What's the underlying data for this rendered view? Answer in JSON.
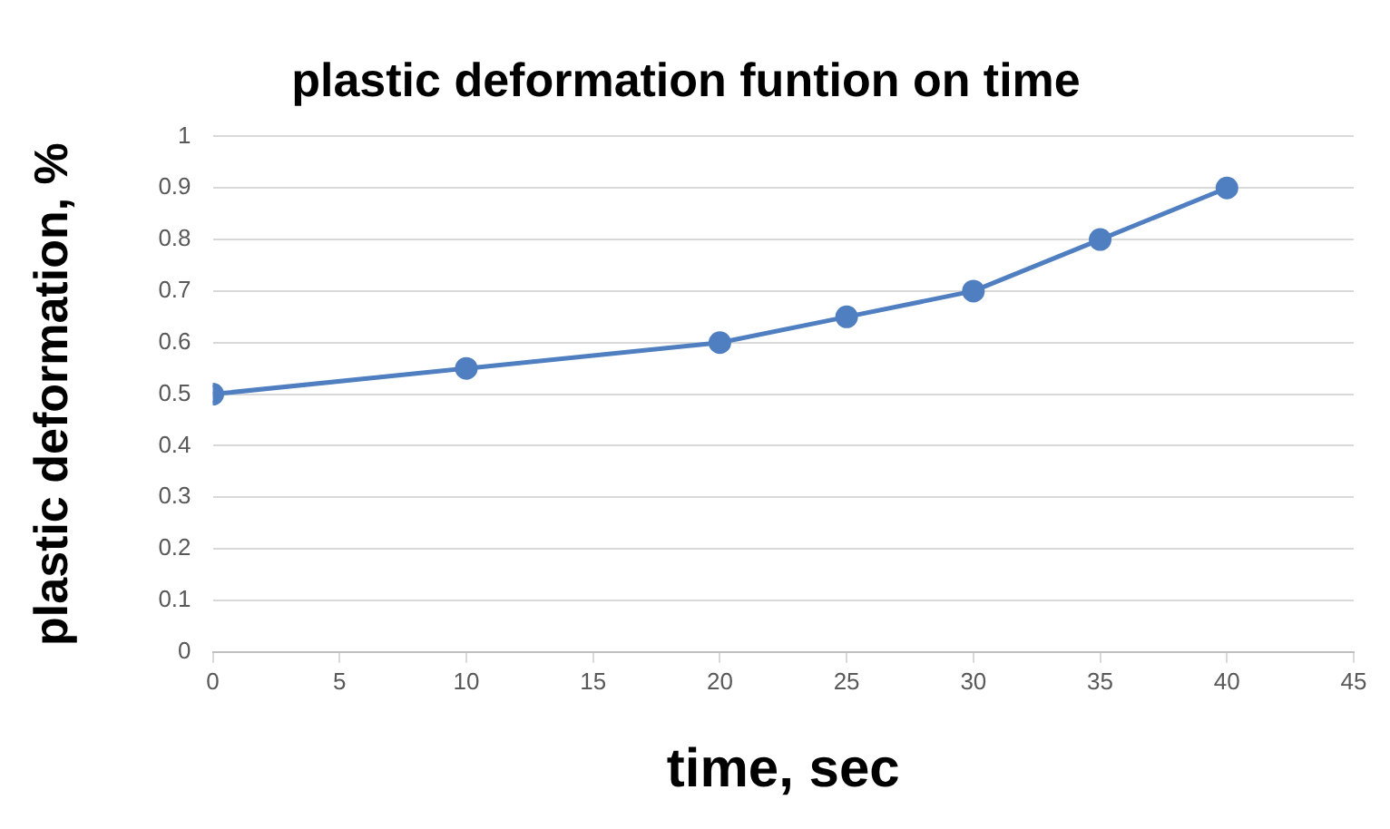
{
  "chart_data": {
    "type": "line",
    "title": "plastic deformation funtion on time",
    "xlabel": "time, sec",
    "ylabel": "plastic deformation, %",
    "x": [
      0,
      10,
      20,
      25,
      30,
      35,
      40
    ],
    "series": [
      {
        "color": "#4f7fc0",
        "values": [
          0.5,
          0.55,
          0.6,
          0.65,
          0.7,
          0.8,
          0.9
        ]
      }
    ],
    "xlim": [
      0,
      45
    ],
    "xticks": [
      0,
      5,
      10,
      15,
      20,
      25,
      30,
      35,
      40,
      45
    ],
    "ylim": [
      0,
      1
    ],
    "yticks": [
      0,
      0.1,
      0.2,
      0.3,
      0.4,
      0.5,
      0.6,
      0.7,
      0.8,
      0.9,
      1
    ],
    "grid": "y",
    "legend": false,
    "marker": "circle",
    "line_style": "solid"
  }
}
